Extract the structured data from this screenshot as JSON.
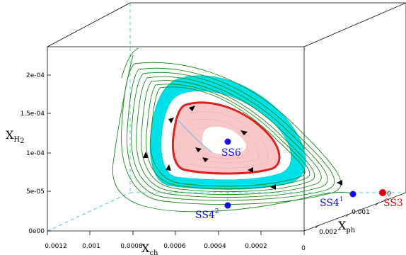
{
  "chart_data": {
    "type": "3d-trajectory",
    "axes": {
      "z": {
        "label_main": "X",
        "label_sub": "H",
        "label_sub2": "2",
        "ticks": [
          "0e00",
          "5e-05",
          "1e-04",
          "1.5e-04",
          "2e-04"
        ]
      },
      "x": {
        "label_main": "X",
        "label_sub": "ch",
        "ticks": [
          "0.0012",
          "0.001",
          "0.0008",
          "0.0006",
          "0.0004",
          "0.0002",
          "0"
        ]
      },
      "y": {
        "label_main": "X",
        "label_sub": "ph",
        "ticks": [
          "0",
          "0.001",
          "0.002"
        ]
      }
    },
    "points": [
      {
        "label": "SS6",
        "sup": "",
        "color": "#1010e0"
      },
      {
        "label": "SS4",
        "sup": "1",
        "color": "#1010e0"
      },
      {
        "label": "SS4",
        "sup": "2",
        "color": "#1010e0"
      },
      {
        "label": "SS3",
        "sup": "",
        "color": "#e00000"
      }
    ],
    "colors": {
      "trajectories": "#1a8a1a",
      "attractor_band": "#00e0e8",
      "limit_cycle": "#e02020",
      "inner_fill": "#f8c8c8",
      "guide_lines": "#20c0c0",
      "axes_box": "#000000"
    }
  }
}
